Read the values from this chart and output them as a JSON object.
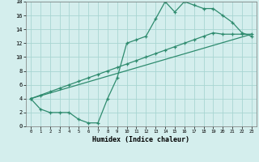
{
  "line1_x": [
    0,
    1,
    2,
    3,
    4,
    5,
    6,
    7,
    8,
    9,
    10,
    11,
    12,
    13,
    14,
    15,
    16,
    17,
    18,
    19,
    20,
    21,
    22,
    23
  ],
  "line1_y": [
    4.0,
    2.5,
    2.0,
    2.0,
    2.0,
    1.0,
    0.5,
    0.5,
    4.0,
    7.0,
    12.0,
    12.5,
    13.0,
    15.5,
    18.0,
    16.5,
    18.0,
    17.5,
    17.0,
    17.0,
    16.0,
    15.0,
    13.5,
    13.0
  ],
  "line2_x": [
    0,
    1,
    2,
    3,
    4,
    5,
    6,
    7,
    8,
    9,
    10,
    11,
    12,
    13,
    14,
    15,
    16,
    17,
    18,
    19,
    20,
    21,
    22,
    23
  ],
  "line2_y": [
    4.0,
    4.5,
    5.0,
    5.5,
    6.0,
    6.5,
    7.0,
    7.5,
    8.0,
    8.5,
    9.0,
    9.5,
    10.0,
    10.5,
    11.0,
    11.5,
    12.0,
    12.5,
    13.0,
    13.5,
    13.3,
    13.3,
    13.3,
    13.3
  ],
  "line3_x": [
    0,
    23
  ],
  "line3_y": [
    4.0,
    13.3
  ],
  "color": "#2e8b6e",
  "bg_color": "#d4eeed",
  "grid_color": "#a8d5d2",
  "xlabel": "Humidex (Indice chaleur)",
  "xlim": [
    -0.5,
    23.5
  ],
  "ylim": [
    0,
    18
  ],
  "xticks": [
    0,
    1,
    2,
    3,
    4,
    5,
    6,
    7,
    8,
    9,
    10,
    11,
    12,
    13,
    14,
    15,
    16,
    17,
    18,
    19,
    20,
    21,
    22,
    23
  ],
  "yticks": [
    0,
    2,
    4,
    6,
    8,
    10,
    12,
    14,
    16,
    18
  ],
  "marker": "+"
}
